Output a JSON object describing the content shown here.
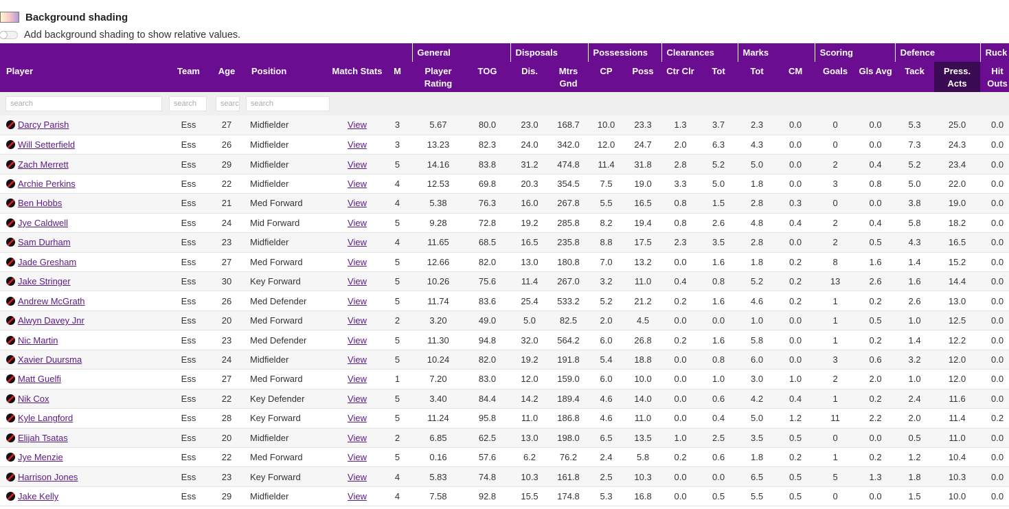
{
  "shading": {
    "title": "Background shading",
    "description": "Add background shading to show relative values."
  },
  "groups": [
    "General",
    "Disposals",
    "Possessions",
    "Clearances",
    "Marks",
    "Scoring",
    "Defence",
    "Ruck"
  ],
  "columns": {
    "player": "Player",
    "team": "Team",
    "age": "Age",
    "position": "Position",
    "match_stats": "Match Stats",
    "m": "M",
    "player_rating": "Player Rating",
    "tog": "TOG",
    "dis": "Dis.",
    "mtrs_gnd": "Mtrs Gnd",
    "cp": "CP",
    "poss": "Poss",
    "ctr_clr": "Ctr Clr",
    "clr_tot": "Tot",
    "marks_tot": "Tot",
    "cm": "CM",
    "goals": "Goals",
    "gls_avg": "Gls Avg",
    "tack": "Tack",
    "press_acts": "Press. Acts",
    "hit_outs": "Hit Outs"
  },
  "search": {
    "player": "search",
    "team": "search",
    "age": "search",
    "position": "search"
  },
  "view_label": "View",
  "rows": [
    [
      "Darcy Parish",
      "Ess",
      "27",
      "Midfielder",
      "3",
      "5.67",
      "80.0",
      "23.0",
      "168.7",
      "10.0",
      "23.3",
      "1.3",
      "3.7",
      "2.3",
      "0.0",
      "0",
      "0.0",
      "5.3",
      "25.0",
      "0.0"
    ],
    [
      "Will Setterfield",
      "Ess",
      "26",
      "Midfielder",
      "3",
      "13.23",
      "82.3",
      "24.0",
      "342.0",
      "12.0",
      "24.7",
      "2.0",
      "6.3",
      "4.3",
      "0.0",
      "0",
      "0.0",
      "7.3",
      "24.3",
      "0.0"
    ],
    [
      "Zach Merrett",
      "Ess",
      "29",
      "Midfielder",
      "5",
      "14.16",
      "83.8",
      "31.2",
      "474.8",
      "11.4",
      "31.8",
      "2.8",
      "5.2",
      "5.0",
      "0.0",
      "2",
      "0.4",
      "5.2",
      "23.4",
      "0.0"
    ],
    [
      "Archie Perkins",
      "Ess",
      "22",
      "Midfielder",
      "4",
      "12.53",
      "69.8",
      "20.3",
      "354.5",
      "7.5",
      "19.0",
      "3.3",
      "5.0",
      "1.8",
      "0.0",
      "3",
      "0.8",
      "5.0",
      "22.0",
      "0.0"
    ],
    [
      "Ben Hobbs",
      "Ess",
      "21",
      "Med Forward",
      "4",
      "5.38",
      "76.3",
      "16.0",
      "267.8",
      "5.5",
      "16.5",
      "0.8",
      "1.5",
      "2.8",
      "0.3",
      "0",
      "0.0",
      "3.8",
      "19.0",
      "0.0"
    ],
    [
      "Jye Caldwell",
      "Ess",
      "24",
      "Mid Forward",
      "5",
      "9.28",
      "72.8",
      "19.2",
      "285.8",
      "8.2",
      "19.4",
      "0.8",
      "2.6",
      "4.8",
      "0.4",
      "2",
      "0.4",
      "5.8",
      "18.2",
      "0.0"
    ],
    [
      "Sam Durham",
      "Ess",
      "23",
      "Midfielder",
      "4",
      "11.65",
      "68.5",
      "16.5",
      "235.8",
      "8.8",
      "17.5",
      "2.3",
      "3.5",
      "2.8",
      "0.0",
      "2",
      "0.5",
      "4.3",
      "16.5",
      "0.0"
    ],
    [
      "Jade Gresham",
      "Ess",
      "27",
      "Med Forward",
      "5",
      "12.66",
      "82.0",
      "13.0",
      "180.8",
      "7.0",
      "13.2",
      "0.0",
      "1.6",
      "1.8",
      "0.2",
      "8",
      "1.6",
      "1.4",
      "15.2",
      "0.0"
    ],
    [
      "Jake Stringer",
      "Ess",
      "30",
      "Key Forward",
      "5",
      "10.26",
      "75.6",
      "11.4",
      "267.0",
      "3.2",
      "11.0",
      "0.4",
      "0.8",
      "5.2",
      "0.2",
      "13",
      "2.6",
      "1.6",
      "14.4",
      "0.0"
    ],
    [
      "Andrew McGrath",
      "Ess",
      "26",
      "Med Defender",
      "5",
      "11.74",
      "83.6",
      "25.4",
      "533.2",
      "5.2",
      "21.2",
      "0.2",
      "1.6",
      "4.6",
      "0.2",
      "1",
      "0.2",
      "2.6",
      "13.0",
      "0.0"
    ],
    [
      "Alwyn Davey Jnr",
      "Ess",
      "20",
      "Med Forward",
      "2",
      "3.20",
      "49.0",
      "5.0",
      "82.5",
      "2.0",
      "4.5",
      "0.0",
      "0.0",
      "1.0",
      "0.0",
      "1",
      "0.5",
      "1.0",
      "12.5",
      "0.0"
    ],
    [
      "Nic Martin",
      "Ess",
      "23",
      "Med Defender",
      "5",
      "11.30",
      "94.8",
      "32.0",
      "564.2",
      "6.0",
      "26.8",
      "0.2",
      "1.6",
      "5.8",
      "0.0",
      "1",
      "0.2",
      "1.4",
      "12.2",
      "0.0"
    ],
    [
      "Xavier Duursma",
      "Ess",
      "24",
      "Midfielder",
      "5",
      "10.24",
      "82.0",
      "19.2",
      "191.8",
      "5.4",
      "18.8",
      "0.0",
      "0.8",
      "6.0",
      "0.0",
      "3",
      "0.6",
      "3.2",
      "12.0",
      "0.0"
    ],
    [
      "Matt Guelfi",
      "Ess",
      "27",
      "Med Forward",
      "1",
      "7.20",
      "83.0",
      "12.0",
      "159.0",
      "6.0",
      "10.0",
      "0.0",
      "1.0",
      "3.0",
      "1.0",
      "2",
      "2.0",
      "1.0",
      "12.0",
      "0.0"
    ],
    [
      "Nik Cox",
      "Ess",
      "22",
      "Key Defender",
      "5",
      "3.40",
      "84.4",
      "14.2",
      "189.4",
      "4.6",
      "14.0",
      "0.0",
      "0.6",
      "4.2",
      "0.4",
      "1",
      "0.2",
      "2.4",
      "11.6",
      "0.0"
    ],
    [
      "Kyle Langford",
      "Ess",
      "28",
      "Key Forward",
      "5",
      "11.24",
      "95.8",
      "11.0",
      "186.8",
      "4.6",
      "11.0",
      "0.0",
      "0.4",
      "5.0",
      "1.2",
      "11",
      "2.2",
      "2.0",
      "11.4",
      "0.2"
    ],
    [
      "Elijah Tsatas",
      "Ess",
      "20",
      "Midfielder",
      "2",
      "6.85",
      "62.5",
      "13.0",
      "198.0",
      "6.5",
      "13.5",
      "1.0",
      "2.5",
      "3.5",
      "0.5",
      "0",
      "0.0",
      "0.5",
      "11.0",
      "0.0"
    ],
    [
      "Jye Menzie",
      "Ess",
      "22",
      "Med Forward",
      "5",
      "0.16",
      "57.6",
      "6.2",
      "76.2",
      "2.4",
      "5.8",
      "0.2",
      "0.6",
      "1.8",
      "0.2",
      "1",
      "0.2",
      "1.2",
      "10.4",
      "0.0"
    ],
    [
      "Harrison Jones",
      "Ess",
      "23",
      "Key Forward",
      "4",
      "5.83",
      "74.8",
      "10.3",
      "161.8",
      "2.5",
      "10.3",
      "0.0",
      "0.0",
      "6.5",
      "0.5",
      "5",
      "1.3",
      "1.8",
      "10.3",
      "0.0"
    ],
    [
      "Jake Kelly",
      "Ess",
      "29",
      "Midfielder",
      "4",
      "7.58",
      "92.8",
      "15.5",
      "174.8",
      "5.3",
      "16.8",
      "0.0",
      "0.5",
      "5.5",
      "0.5",
      "0",
      "0.0",
      "1.5",
      "10.0",
      "0.0"
    ]
  ]
}
